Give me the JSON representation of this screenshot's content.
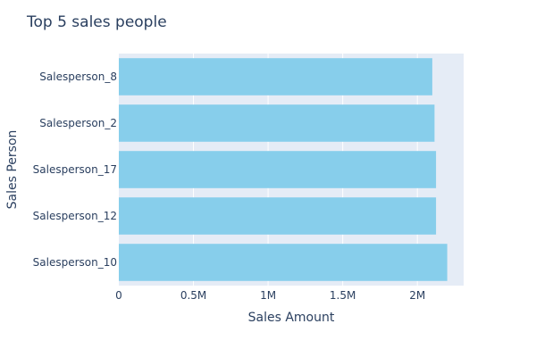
{
  "chart_data": {
    "type": "bar",
    "orientation": "horizontal",
    "title": "Top 5 sales people",
    "xlabel": "Sales Amount",
    "ylabel": "Sales Person",
    "categories": [
      "Salesperson_8",
      "Salesperson_2",
      "Salesperson_17",
      "Salesperson_12",
      "Salesperson_10"
    ],
    "values": [
      2100000,
      2115000,
      2125000,
      2125000,
      2200000
    ],
    "xlim": [
      0,
      2310000
    ],
    "xticks": [
      0,
      500000,
      1000000,
      1500000,
      2000000
    ],
    "xtick_labels": [
      "0",
      "0.5M",
      "1M",
      "1.5M",
      "2M"
    ],
    "grid": true,
    "colors": {
      "bar": "#87ceeb",
      "plot_bg": "#e5ecf6",
      "grid": "#ffffff",
      "text": "#2a3f5f"
    }
  }
}
